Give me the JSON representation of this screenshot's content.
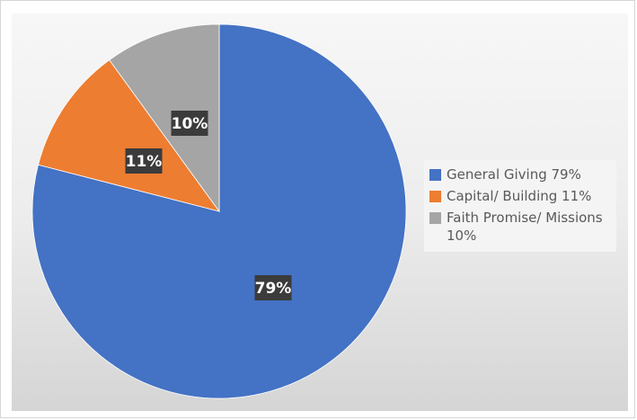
{
  "chart_data": {
    "type": "pie",
    "title": "",
    "categories": [
      "General Giving",
      "Capital/ Building",
      "Faith Promise/ Missions"
    ],
    "values": [
      79,
      11,
      10
    ],
    "data_labels": [
      "79%",
      "11%",
      "10%"
    ],
    "legend": {
      "placement": "right",
      "entries": [
        "General Giving 79%",
        "Capital/ Building 11%",
        "Faith Promise/ Missions 10%"
      ]
    },
    "colors": [
      "#4472c4",
      "#ed7d31",
      "#a5a5a5"
    ],
    "start_angle": "12 o'clock",
    "direction": "clockwise"
  }
}
